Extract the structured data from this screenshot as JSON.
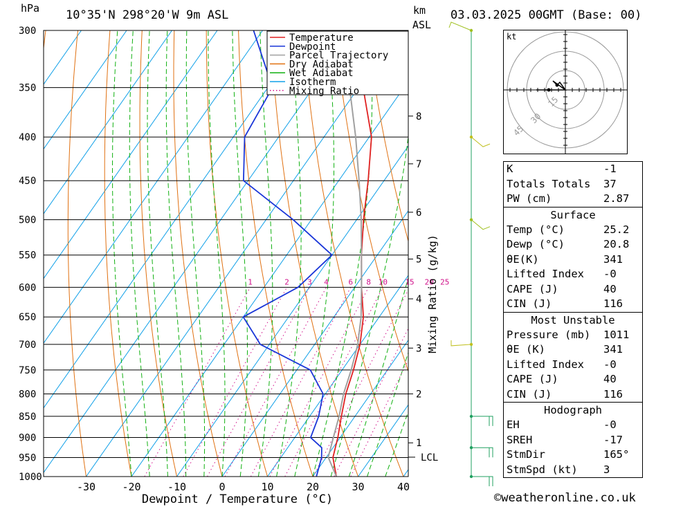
{
  "header": {
    "hpa_label": "hPa",
    "location": "10°35'N  298°20'W  9m  ASL",
    "km_label": "km",
    "asl_label": "ASL",
    "datetime": "03.03.2025  00GMT  (Base: 00)"
  },
  "chart_data": {
    "type": "line",
    "subtype": "skew-T log-P diagram",
    "xlabel": "Dewpoint / Temperature (°C)",
    "ylabel": "hPa",
    "secondary_ylabel": "Mixing Ratio (g/kg)",
    "x_ticks": [
      -30,
      -20,
      -10,
      0,
      10,
      20,
      30,
      40
    ],
    "y_ticks": [
      300,
      350,
      400,
      450,
      500,
      550,
      600,
      650,
      700,
      750,
      800,
      850,
      900,
      950,
      1000
    ],
    "ylim": [
      1000,
      300
    ],
    "km_ticks": [
      {
        "km": 1,
        "p": 913
      },
      {
        "km": 2,
        "p": 800
      },
      {
        "km": 3,
        "p": 707
      },
      {
        "km": 4,
        "p": 619
      },
      {
        "km": 5,
        "p": 556
      },
      {
        "km": 6,
        "p": 490
      },
      {
        "km": 7,
        "p": 430
      },
      {
        "km": 8,
        "p": 378
      }
    ],
    "lcl": {
      "label": "LCL",
      "p": 949
    },
    "mixing_ratio_labels": [
      "1",
      "2",
      "3",
      "4",
      "6",
      "8",
      "10",
      "15",
      "20",
      "25"
    ],
    "legend": {
      "placement": "top-left inside plot",
      "entries": [
        {
          "name": "Temperature",
          "color": "#e02020",
          "style": "solid"
        },
        {
          "name": "Dewpoint",
          "color": "#1a36d8",
          "style": "solid"
        },
        {
          "name": "Parcel Trajectory",
          "color": "#a0a0a0",
          "style": "solid"
        },
        {
          "name": "Dry Adiabat",
          "color": "#e07010",
          "style": "solid"
        },
        {
          "name": "Wet Adiabat",
          "color": "#10b010",
          "style": "solid"
        },
        {
          "name": "Isotherm",
          "color": "#10a0e8",
          "style": "solid"
        },
        {
          "name": "Mixing Ratio",
          "color": "#d0108a",
          "style": "dotted"
        }
      ]
    },
    "series": [
      {
        "name": "Temperature",
        "color": "#e02020",
        "points": [
          {
            "p": 1000,
            "t": 25.2
          },
          {
            "p": 950,
            "t": 21.5
          },
          {
            "p": 900,
            "t": 19.5
          },
          {
            "p": 850,
            "t": 17.0
          },
          {
            "p": 800,
            "t": 14.5
          },
          {
            "p": 750,
            "t": 12.5
          },
          {
            "p": 700,
            "t": 10.0
          },
          {
            "p": 650,
            "t": 6.5
          },
          {
            "p": 600,
            "t": 1.5
          },
          {
            "p": 550,
            "t": -3.5
          },
          {
            "p": 500,
            "t": -8.5
          },
          {
            "p": 450,
            "t": -13.5
          },
          {
            "p": 400,
            "t": -19.5
          },
          {
            "p": 350,
            "t": -29.0
          },
          {
            "p": 300,
            "t": -37.5
          }
        ]
      },
      {
        "name": "Dewpoint",
        "color": "#1a36d8",
        "points": [
          {
            "p": 1000,
            "t": 20.8
          },
          {
            "p": 950,
            "t": 19.0
          },
          {
            "p": 925,
            "t": 17.5
          },
          {
            "p": 900,
            "t": 13.5
          },
          {
            "p": 850,
            "t": 12.0
          },
          {
            "p": 800,
            "t": 9.5
          },
          {
            "p": 750,
            "t": 3.0
          },
          {
            "p": 700,
            "t": -12.0
          },
          {
            "p": 650,
            "t": -20.0
          },
          {
            "p": 600,
            "t": -12.5
          },
          {
            "p": 550,
            "t": -10.0
          },
          {
            "p": 500,
            "t": -24.0
          },
          {
            "p": 450,
            "t": -41.0
          },
          {
            "p": 400,
            "t": -47.5
          },
          {
            "p": 350,
            "t": -49.0
          },
          {
            "p": 300,
            "t": -62.0
          }
        ]
      },
      {
        "name": "Parcel Trajectory",
        "color": "#a0a0a0",
        "points": [
          {
            "p": 1000,
            "t": 25.2
          },
          {
            "p": 949,
            "t": 20.4
          },
          {
            "p": 900,
            "t": 18.5
          },
          {
            "p": 850,
            "t": 16.5
          },
          {
            "p": 800,
            "t": 14.0
          },
          {
            "p": 750,
            "t": 12.0
          },
          {
            "p": 700,
            "t": 9.5
          },
          {
            "p": 650,
            "t": 6.0
          },
          {
            "p": 600,
            "t": 1.5
          },
          {
            "p": 550,
            "t": -3.5
          },
          {
            "p": 500,
            "t": -9.0
          },
          {
            "p": 450,
            "t": -15.5
          },
          {
            "p": 400,
            "t": -23.0
          },
          {
            "p": 350,
            "t": -32.0
          },
          {
            "p": 300,
            "t": -42.5
          }
        ]
      }
    ],
    "wind_barbs": [
      {
        "p": 300,
        "direction": "from-west-southwest"
      },
      {
        "p": 400,
        "direction": "from-northeast"
      },
      {
        "p": 500,
        "direction": "from-northeast"
      },
      {
        "p": 700,
        "direction": "from-east"
      },
      {
        "p": 850,
        "direction": "from-west"
      },
      {
        "p": 925,
        "direction": "from-west"
      },
      {
        "p": 1000,
        "direction": "from-west"
      }
    ]
  },
  "hodograph": {
    "unit_label": "kt",
    "ring_labels": [
      "15",
      "30",
      "45"
    ]
  },
  "indices": {
    "top": [
      {
        "label": "K",
        "value": "-1"
      },
      {
        "label": "Totals Totals",
        "value": "37"
      },
      {
        "label": "PW (cm)",
        "value": "2.87"
      }
    ],
    "surface": {
      "title": "Surface",
      "rows": [
        {
          "label": "Temp (°C)",
          "value": "25.2"
        },
        {
          "label": "Dewp (°C)",
          "value": "20.8"
        },
        {
          "label": "θE(K)",
          "value": "341"
        },
        {
          "label": "Lifted Index",
          "value": "-0"
        },
        {
          "label": "CAPE (J)",
          "value": "40"
        },
        {
          "label": "CIN (J)",
          "value": "116"
        }
      ]
    },
    "most_unstable": {
      "title": "Most Unstable",
      "rows": [
        {
          "label": "Pressure (mb)",
          "value": "1011"
        },
        {
          "label": "θE (K)",
          "value": "341"
        },
        {
          "label": "Lifted Index",
          "value": "-0"
        },
        {
          "label": "CAPE (J)",
          "value": "40"
        },
        {
          "label": "CIN (J)",
          "value": "116"
        }
      ]
    },
    "hodograph": {
      "title": "Hodograph",
      "rows": [
        {
          "label": "EH",
          "value": "-0"
        },
        {
          "label": "SREH",
          "value": "-17"
        },
        {
          "label": "StmDir",
          "value": "165°"
        },
        {
          "label": "StmSpd (kt)",
          "value": "3"
        }
      ]
    }
  },
  "copyright": "©weatheronline.co.uk"
}
